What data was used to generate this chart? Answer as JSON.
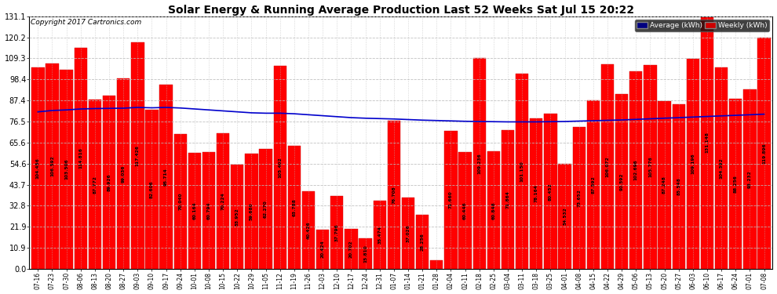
{
  "title": "Solar Energy & Running Average Production Last 52 Weeks Sat Jul 15 20:22",
  "copyright": "Copyright 2017 Cartronics.com",
  "background_color": "#ffffff",
  "bar_color": "#ff0000",
  "line_color": "#0000cc",
  "ytick_labels": [
    "0.0",
    "10.9",
    "21.9",
    "32.8",
    "43.7",
    "54.6",
    "65.6",
    "76.5",
    "87.4",
    "98.4",
    "109.3",
    "120.2",
    "131.1"
  ],
  "ytick_values": [
    0.0,
    10.9,
    21.9,
    32.8,
    43.7,
    54.6,
    65.6,
    76.5,
    87.4,
    98.4,
    109.3,
    120.2,
    131.1
  ],
  "categories": [
    "07-16",
    "07-23",
    "07-30",
    "08-06",
    "08-13",
    "08-20",
    "08-27",
    "09-03",
    "09-10",
    "09-17",
    "09-24",
    "10-01",
    "10-08",
    "10-15",
    "10-22",
    "10-29",
    "11-05",
    "11-12",
    "11-19",
    "11-26",
    "12-03",
    "12-10",
    "12-17",
    "12-24",
    "12-31",
    "01-07",
    "01-14",
    "01-21",
    "01-28",
    "02-04",
    "02-11",
    "02-18",
    "02-25",
    "03-04",
    "03-11",
    "03-18",
    "03-25",
    "04-01",
    "04-08",
    "04-15",
    "04-22",
    "04-29",
    "05-06",
    "05-13",
    "05-20",
    "05-27",
    "06-03",
    "06-10",
    "06-17",
    "06-24",
    "07-01",
    "07-08"
  ],
  "bar_values": [
    104.456,
    106.592,
    103.506,
    114.816,
    87.772,
    89.926,
    99.036,
    117.426,
    82.606,
    95.714,
    70.04,
    60.164,
    60.794,
    70.224,
    53.952,
    59.68,
    62.27,
    105.402,
    63.788,
    40.426,
    20.424,
    37.796,
    20.702,
    15.81,
    35.474,
    76.708,
    37.026,
    28.256,
    4.312,
    71.66,
    60.446,
    109.236,
    60.848,
    71.864,
    101.15,
    78.164,
    80.452,
    54.532,
    73.652,
    87.592,
    106.072,
    90.592,
    102.696,
    105.776,
    87.248,
    85.548,
    109.196,
    131.148,
    104.392,
    88.256,
    93.232,
    119.896
  ],
  "avg_values": [
    81.5,
    82.2,
    82.5,
    83.0,
    83.2,
    83.3,
    83.4,
    83.8,
    83.6,
    83.8,
    83.5,
    83.0,
    82.5,
    82.0,
    81.5,
    81.0,
    80.8,
    80.8,
    80.5,
    80.0,
    79.5,
    79.0,
    78.5,
    78.2,
    78.0,
    77.8,
    77.5,
    77.2,
    77.0,
    76.8,
    76.6,
    76.5,
    76.4,
    76.3,
    76.3,
    76.3,
    76.4,
    76.5,
    76.7,
    76.9,
    77.1,
    77.3,
    77.6,
    77.9,
    78.2,
    78.5,
    78.8,
    79.1,
    79.4,
    79.7,
    80.0,
    80.3
  ],
  "legend_avg_bg": "#000080",
  "legend_weekly_bg": "#cc0000",
  "ymax": 131.1,
  "ymin": 0.0,
  "figwidth": 9.9,
  "figheight": 3.75,
  "dpi": 100
}
